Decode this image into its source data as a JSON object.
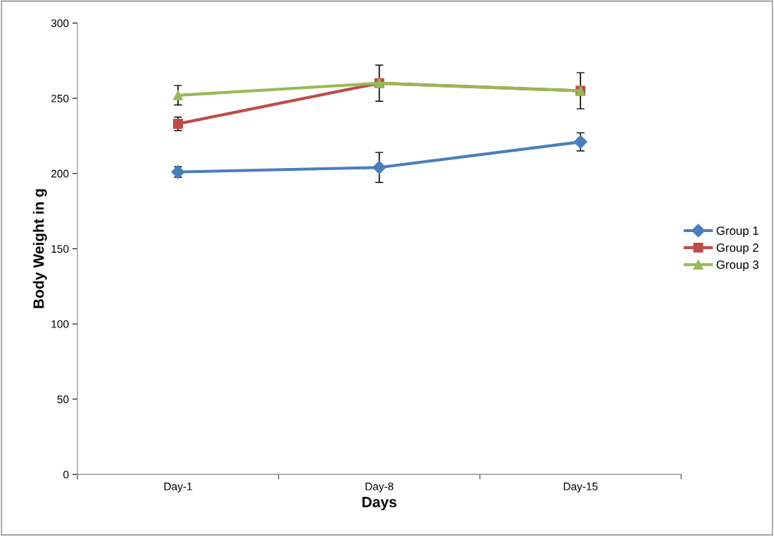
{
  "chart_data": {
    "type": "line",
    "xlabel": "Days",
    "ylabel": "Body Weight in g",
    "categories": [
      "Day-1",
      "Day-8",
      "Day-15"
    ],
    "series": [
      {
        "name": "Group 1",
        "color": "#4a7ebb",
        "marker": "diamond",
        "values": [
          201,
          204,
          221
        ],
        "errors": [
          3.5,
          10,
          6
        ]
      },
      {
        "name": "Group 2",
        "color": "#be4b48",
        "marker": "square",
        "values": [
          233,
          260,
          255
        ],
        "errors": [
          4.5,
          null,
          null
        ]
      },
      {
        "name": "Group 3",
        "color": "#98b954",
        "marker": "triangle",
        "values": [
          252,
          260,
          255
        ],
        "errors": [
          6.5,
          12,
          12
        ]
      }
    ],
    "ylim": [
      0,
      300
    ],
    "yticks": [
      0,
      50,
      100,
      150,
      200,
      250,
      300
    ],
    "grid": false,
    "legend": "right"
  }
}
